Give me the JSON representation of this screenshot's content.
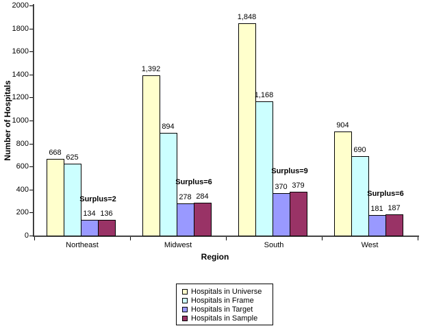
{
  "chart_data": {
    "type": "bar",
    "title": "",
    "xlabel": "Region",
    "ylabel": "Number of Hospitals",
    "ylim": [
      0,
      2000
    ],
    "ytick_step": 200,
    "grid": false,
    "legend_position": "bottom",
    "categories": [
      "Northeast",
      "Midwest",
      "South",
      "West"
    ],
    "series": [
      {
        "name": "Hospitals in Universe",
        "color": "#FFFFCC",
        "values": [
          668,
          1392,
          1848,
          904
        ],
        "labels": [
          "668",
          "1,392",
          "1,848",
          "904"
        ]
      },
      {
        "name": "Hospitals in Frame",
        "color": "#CCFFFF",
        "values": [
          625,
          894,
          1168,
          690
        ],
        "labels": [
          "625",
          "894",
          "1,168",
          "690"
        ]
      },
      {
        "name": "Hospitals in Target",
        "color": "#9999FF",
        "values": [
          134,
          278,
          370,
          181
        ],
        "labels": [
          "134",
          "278",
          "370",
          "181"
        ]
      },
      {
        "name": "Hospitals in Sample",
        "color": "#993366",
        "values": [
          136,
          284,
          379,
          187
        ],
        "labels": [
          "136",
          "284",
          "379",
          "187"
        ]
      }
    ],
    "annotations": [
      {
        "category": "Northeast",
        "text": "Surplus=2"
      },
      {
        "category": "Midwest",
        "text": "Surplus=6"
      },
      {
        "category": "South",
        "text": "Surplus=9"
      },
      {
        "category": "West",
        "text": "Surplus=6"
      }
    ]
  }
}
